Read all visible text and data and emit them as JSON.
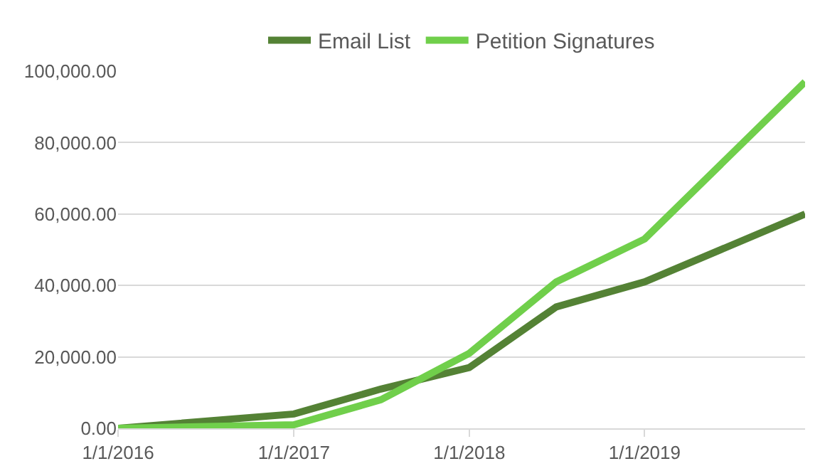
{
  "chart_data": {
    "type": "line",
    "x": [
      "2016-01-01",
      "2017-01-01",
      "2017-07-01",
      "2018-01-01",
      "2018-07-01",
      "2019-01-01",
      "2019-12-01"
    ],
    "series": [
      {
        "name": "Email List",
        "color": "#548235",
        "values": [
          0,
          4000,
          11000,
          17000,
          34000,
          41000,
          60000
        ]
      },
      {
        "name": "Petition Signatures",
        "color": "#70cf4b",
        "values": [
          0,
          1000,
          8000,
          21000,
          41000,
          53000,
          97000
        ]
      }
    ],
    "xlim": [
      "2016-01-01",
      "2019-12-01"
    ],
    "xticks": [
      {
        "value": "2016-01-01",
        "label": "1/1/2016"
      },
      {
        "value": "2017-01-01",
        "label": "1/1/2017"
      },
      {
        "value": "2018-01-01",
        "label": "1/1/2018"
      },
      {
        "value": "2019-01-01",
        "label": "1/1/2019"
      }
    ],
    "ylim": [
      0,
      100000
    ],
    "yticks": [
      {
        "value": 0,
        "label": "0.00"
      },
      {
        "value": 20000,
        "label": "20,000.00"
      },
      {
        "value": 40000,
        "label": "40,000.00"
      },
      {
        "value": 60000,
        "label": "60,000.00"
      },
      {
        "value": 80000,
        "label": "80,000.00"
      },
      {
        "value": 100000,
        "label": "100,000.00"
      }
    ],
    "grid": "y",
    "legend": "top",
    "marker": "none",
    "line_style": "solid"
  }
}
